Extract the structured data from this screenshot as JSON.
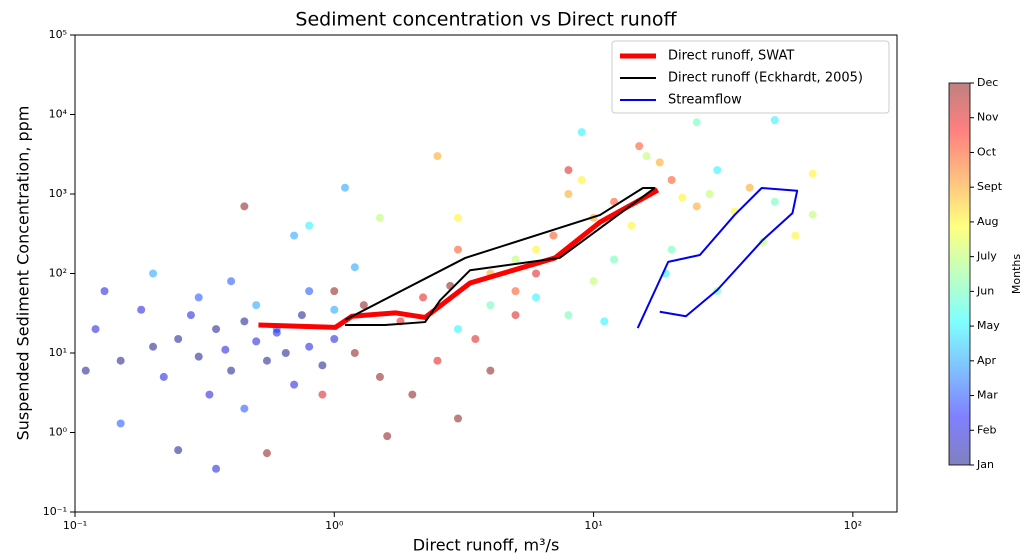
{
  "chart_data": {
    "type": "scatter",
    "title": "Sediment concentration vs Direct runoff",
    "xlabel": "Direct runoff, m³/s",
    "ylabel": "Suspended Sediment Concentration, ppm",
    "xscale": "log",
    "yscale": "log",
    "xlim": [
      0.1,
      148
    ],
    "ylim": [
      0.1,
      100000
    ],
    "xticks": [
      {
        "value": 0.1,
        "label": "10⁻¹"
      },
      {
        "value": 1,
        "label": "10⁰"
      },
      {
        "value": 10,
        "label": "10¹"
      },
      {
        "value": 100,
        "label": "10²"
      }
    ],
    "yticks": [
      {
        "value": 0.1,
        "label": "10⁻¹"
      },
      {
        "value": 1,
        "label": "10⁰"
      },
      {
        "value": 10,
        "label": "10¹"
      },
      {
        "value": 100,
        "label": "10²"
      },
      {
        "value": 1000,
        "label": "10³"
      },
      {
        "value": 10000,
        "label": "10⁴"
      },
      {
        "value": 100000,
        "label": "10⁵"
      }
    ],
    "legend": "upper right",
    "points": {
      "alpha": 0.5,
      "x": [
        0.12,
        0.15,
        0.18,
        0.2,
        0.22,
        0.25,
        0.28,
        0.3,
        0.33,
        0.35,
        0.38,
        0.4,
        0.45,
        0.5,
        0.55,
        0.6,
        0.65,
        0.7,
        0.75,
        0.8,
        0.9,
        1.0,
        0.11,
        0.13,
        0.35,
        0.25,
        0.3,
        0.4,
        0.5,
        0.6,
        0.7,
        0.8,
        1.0,
        1.2,
        0.2,
        0.45,
        0.15,
        1.1,
        0.45,
        1.2,
        1.5,
        1.8,
        2.0,
        2.5,
        3.0,
        3.5,
        1.3,
        2.2,
        4.0,
        5.0,
        1.6,
        0.55,
        2.8,
        6.0,
        8.0,
        1.0,
        0.9,
        3.0,
        7,
        12,
        15,
        20,
        5,
        2.5,
        8,
        10,
        18,
        25,
        40,
        4,
        3,
        6,
        9,
        14,
        22,
        35,
        60,
        70,
        5,
        10,
        16,
        28,
        45,
        70,
        1.5,
        4,
        8,
        12,
        20,
        30,
        50,
        25,
        3,
        6,
        11,
        19,
        30,
        50,
        0.8,
        9
      ],
      "values": [
        20,
        8,
        35,
        12,
        5,
        15,
        30,
        9,
        3,
        20,
        11,
        6,
        25,
        14,
        8,
        18,
        10,
        4,
        30,
        12,
        7,
        15,
        6,
        60,
        0.35,
        0.6,
        50,
        80,
        40,
        20,
        300,
        60,
        35,
        120,
        100,
        2,
        1.3,
        1200,
        700,
        10,
        5,
        25,
        3,
        8,
        1.5,
        15,
        40,
        50,
        6,
        30,
        0.9,
        0.55,
        70,
        100,
        2000,
        60,
        3,
        200,
        300,
        800,
        4000,
        1500,
        60,
        3000,
        1000,
        500,
        2500,
        700,
        1200,
        100,
        500,
        200,
        1500,
        400,
        900,
        600,
        300,
        1800,
        150,
        80,
        3000,
        1000,
        250,
        550,
        500,
        40,
        30,
        150,
        200,
        60,
        800,
        8000,
        20,
        50,
        25,
        100,
        2000,
        8500,
        400,
        6000
      ],
      "month": [
        2,
        1,
        2,
        1,
        2,
        1,
        2,
        1,
        2,
        1,
        2,
        1,
        1,
        2,
        1,
        2,
        1,
        2,
        1,
        2,
        1,
        2,
        1,
        2,
        2,
        1,
        3,
        3,
        4,
        3,
        4,
        3,
        4,
        4,
        4,
        3,
        3,
        4,
        12,
        12,
        12,
        11,
        12,
        11,
        12,
        11,
        12,
        11,
        12,
        11,
        12,
        12,
        12,
        11,
        11,
        12,
        11,
        10,
        10,
        10,
        10,
        10,
        10,
        9,
        9,
        9,
        9,
        9,
        9,
        9,
        8,
        8,
        8,
        8,
        8,
        8,
        8,
        8,
        7,
        7,
        7,
        7,
        7,
        7,
        7,
        6,
        6,
        6,
        6,
        6,
        6,
        6,
        5,
        5,
        5,
        5,
        5,
        5,
        5,
        5
      ]
    },
    "series": [
      {
        "name": "Direct runoff, SWAT",
        "color": "#ff0000",
        "linewidth": 5,
        "x": [
          0.51,
          1.01,
          1.17,
          1.72,
          2.24,
          3.34,
          7.1,
          10.6,
          17.7
        ],
        "values": [
          22.5,
          21,
          29,
          32,
          28,
          76,
          157,
          444,
          1120
        ]
      },
      {
        "name": "Direct runoff (Eckhardt, 2005)",
        "color": "#000000",
        "linewidth": 2,
        "x": [
          1.1,
          3.2,
          10.6,
          15.5,
          17.2,
          7.4,
          3.34,
          2.56,
          2.24,
          1.57,
          1.1
        ],
        "values": [
          26,
          157,
          545,
          1190,
          1190,
          157,
          110,
          46,
          24.5,
          22.5,
          22.5
        ]
      },
      {
        "name": "Streamflow",
        "color": "#0000ee",
        "linewidth": 2,
        "x": [
          14.8,
          19.4,
          25.7,
          35,
          44.5,
          61,
          58.5,
          45,
          30,
          22.7,
          18
        ],
        "values": [
          20.6,
          140,
          171,
          545,
          1190,
          1100,
          575,
          265,
          62,
          29,
          33
        ]
      }
    ],
    "colorbar": {
      "label": "Months",
      "cmap": "jet",
      "lim": [
        1,
        12
      ],
      "ticks": [
        {
          "value": 1,
          "label": "Jan"
        },
        {
          "value": 2,
          "label": "Feb"
        },
        {
          "value": 3,
          "label": "Mar"
        },
        {
          "value": 4,
          "label": "Apr"
        },
        {
          "value": 5,
          "label": "May"
        },
        {
          "value": 6,
          "label": "Jun"
        },
        {
          "value": 7,
          "label": "July"
        },
        {
          "value": 8,
          "label": "Aug"
        },
        {
          "value": 9,
          "label": "Sept"
        },
        {
          "value": 10,
          "label": "Oct"
        },
        {
          "value": 11,
          "label": "Nov"
        },
        {
          "value": 12,
          "label": "Dec"
        }
      ]
    }
  }
}
